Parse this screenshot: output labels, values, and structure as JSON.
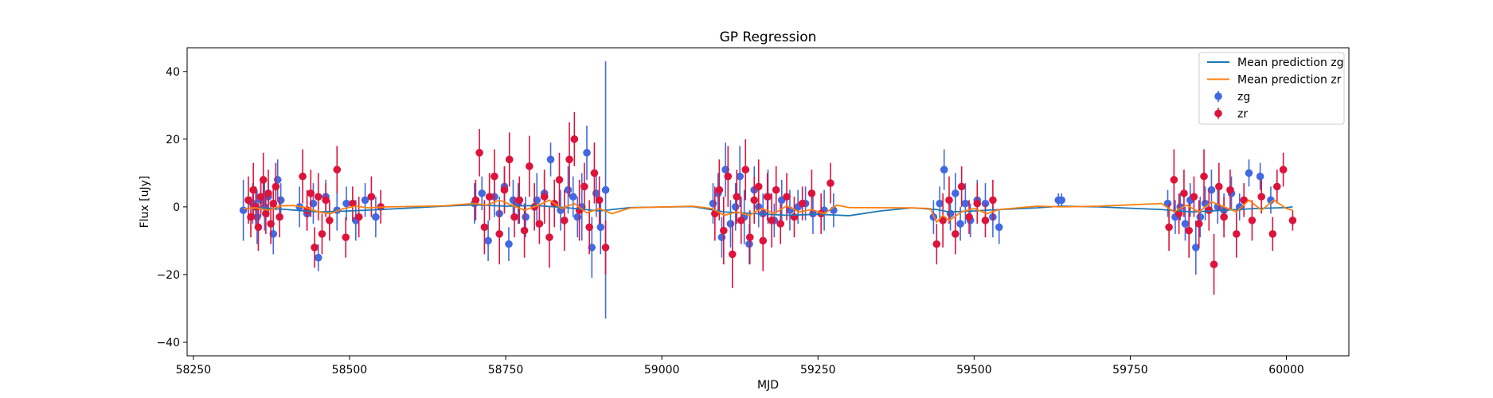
{
  "chart_data": {
    "type": "scatter",
    "title": "GP Regression",
    "xlabel": "MJD",
    "ylabel": "Flux [uJy]",
    "xlim": [
      58240,
      60100
    ],
    "ylim": [
      -44,
      47
    ],
    "xticks": [
      58250,
      58500,
      58750,
      59000,
      59250,
      59500,
      59750,
      60000
    ],
    "yticks": [
      -40,
      -20,
      0,
      20,
      40
    ],
    "grid": false,
    "legend": {
      "position": "top-right",
      "entries": [
        "Mean prediction zg",
        "Mean prediction zr",
        "zg",
        "zr"
      ]
    },
    "colors": {
      "zg_points": "#4169e1",
      "zr_points": "#dc143c",
      "zg_line": "#1f77b4",
      "zr_line": "#ff7f0e"
    },
    "lines": [
      {
        "name": "Mean prediction zg",
        "x": [
          58330,
          58360,
          58400,
          58450,
          58500,
          58550,
          58650,
          58700,
          58750,
          58800,
          58850,
          58900,
          58920,
          58950,
          59050,
          59100,
          59150,
          59200,
          59250,
          59300,
          59350,
          59400,
          59440,
          59460,
          59500,
          59540,
          59600,
          59640,
          59700,
          59800,
          59850,
          59900,
          59950,
          60000,
          60010
        ],
        "y": [
          -0.5,
          -0.3,
          -0.8,
          -1.5,
          -1.2,
          -0.8,
          0.2,
          0.6,
          0.2,
          0.4,
          -0.3,
          -1.2,
          -0.8,
          -0.2,
          0.1,
          -1.5,
          -2,
          -2.5,
          -2.2,
          -2.6,
          -1.2,
          -0.3,
          -0.8,
          -1.5,
          -1.2,
          -0.8,
          -0.3,
          0.2,
          0,
          -0.8,
          -1.5,
          -1,
          -0.5,
          -0.2,
          0
        ]
      },
      {
        "name": "Mean prediction zr",
        "x": [
          58330,
          58350,
          58370,
          58390,
          58410,
          58430,
          58450,
          58470,
          58490,
          58510,
          58530,
          58560,
          58650,
          58700,
          58720,
          58740,
          58760,
          58780,
          58800,
          58820,
          58840,
          58860,
          58880,
          58900,
          58920,
          58950,
          59050,
          59080,
          59100,
          59120,
          59140,
          59160,
          59180,
          59200,
          59220,
          59240,
          59260,
          59280,
          59300,
          59400,
          59430,
          59440,
          59450,
          59460,
          59480,
          59500,
          59520,
          59540,
          59600,
          59640,
          59700,
          59800,
          59820,
          59840,
          59860,
          59880,
          59900,
          59920,
          59940,
          59960,
          59980,
          60000,
          60010
        ],
        "y": [
          -0.5,
          -0.3,
          -1,
          0.3,
          0.4,
          -0.2,
          -1.5,
          -2,
          -0.5,
          0.2,
          -0.3,
          0,
          0.3,
          1,
          0.5,
          2,
          0.5,
          -1,
          0.3,
          2,
          -0.5,
          1,
          -1.8,
          -0.5,
          -2,
          -0.3,
          0.2,
          -0.5,
          -2.5,
          -1.5,
          -2.5,
          -0.5,
          -2,
          0.3,
          -1.5,
          -0.8,
          -2,
          0.5,
          -0.2,
          -0.3,
          -0.5,
          -4.5,
          -2.5,
          -4,
          -1.5,
          -0.5,
          -2,
          -0.8,
          0.2,
          0,
          0.2,
          1,
          -1.5,
          0.5,
          -1.5,
          1.5,
          0,
          -1.5,
          2,
          -1,
          2,
          -0.5,
          -1
        ]
      }
    ],
    "series": [
      {
        "name": "zg",
        "x": [
          58330,
          58345,
          58352,
          58358,
          58364,
          58370,
          58378,
          58385,
          58390,
          58420,
          58432,
          58442,
          58450,
          58462,
          58480,
          58495,
          58510,
          58525,
          58542,
          58700,
          58712,
          58722,
          58732,
          58740,
          58748,
          58755,
          58762,
          58770,
          58782,
          58800,
          58812,
          58822,
          58838,
          58850,
          58858,
          58865,
          58872,
          58880,
          58888,
          58895,
          58902,
          58910,
          59082,
          59090,
          59096,
          59102,
          59110,
          59118,
          59125,
          59132,
          59140,
          59148,
          59155,
          59162,
          59170,
          59180,
          59192,
          59205,
          59218,
          59230,
          59242,
          59260,
          59275,
          59435,
          59445,
          59452,
          59462,
          59470,
          59478,
          59486,
          59494,
          59505,
          59518,
          59530,
          59540,
          59635,
          59640,
          59810,
          59822,
          59830,
          59838,
          59846,
          59855,
          59862,
          59870,
          59880,
          59890,
          59900,
          59912,
          59925,
          59940,
          59958,
          59975
        ],
        "y": [
          -1,
          1,
          -3,
          2,
          0,
          3,
          -8,
          8,
          2,
          0,
          -2,
          1,
          -15,
          3,
          -1,
          1,
          -4,
          2,
          -3,
          1,
          4,
          -10,
          3,
          -2,
          6,
          -11,
          2,
          1,
          -3,
          2,
          4,
          14,
          -1,
          5,
          3,
          -3,
          0,
          16,
          -12,
          4,
          -6,
          5,
          1,
          4,
          -9,
          11,
          -5,
          0,
          9,
          -3,
          -11,
          5,
          0,
          -2,
          3,
          -4,
          2,
          -1,
          0,
          1,
          -2,
          -1,
          -1,
          -3,
          1,
          11,
          -2,
          4,
          -5,
          1,
          -4,
          2,
          1,
          -3,
          -6,
          2,
          2,
          1,
          -3,
          0,
          -5,
          2,
          -12,
          -3,
          1,
          5,
          0,
          -1,
          4,
          0,
          10,
          9,
          2
        ],
        "yerr": [
          9,
          6,
          8,
          5,
          7,
          5,
          6,
          6,
          5,
          6,
          5,
          6,
          4,
          5,
          6,
          5,
          6,
          5,
          6,
          6,
          5,
          6,
          6,
          5,
          6,
          5,
          6,
          6,
          6,
          8,
          6,
          5,
          6,
          7,
          6,
          6,
          10,
          8,
          9,
          7,
          8,
          38,
          6,
          6,
          6,
          8,
          7,
          7,
          9,
          8,
          6,
          7,
          6,
          6,
          8,
          5,
          6,
          6,
          5,
          5,
          6,
          6,
          5,
          5,
          5,
          6,
          5,
          6,
          5,
          6,
          5,
          6,
          6,
          6,
          5,
          2,
          2,
          4,
          5,
          4,
          5,
          5,
          8,
          6,
          5,
          6,
          5,
          5,
          5,
          4,
          4,
          4,
          4
        ]
      },
      {
        "name": "zr",
        "x": [
          58338,
          58342,
          58346,
          58350,
          58354,
          58358,
          58362,
          58366,
          58370,
          58374,
          58378,
          58382,
          58388,
          58425,
          58432,
          58438,
          58444,
          58450,
          58456,
          58462,
          58468,
          58480,
          58494,
          58505,
          58515,
          58535,
          58550,
          58702,
          58708,
          58716,
          58724,
          58732,
          58740,
          58748,
          58756,
          58764,
          58772,
          58780,
          58788,
          58796,
          58804,
          58812,
          58820,
          58828,
          58836,
          58844,
          58852,
          58860,
          58868,
          58876,
          58884,
          58892,
          58900,
          58910,
          59085,
          59092,
          59099,
          59106,
          59113,
          59120,
          59127,
          59134,
          59141,
          59148,
          59155,
          59162,
          59169,
          59176,
          59183,
          59190,
          59200,
          59212,
          59225,
          59240,
          59255,
          59270,
          59440,
          59450,
          59460,
          59470,
          59480,
          59492,
          59505,
          59518,
          59530,
          59812,
          59820,
          59828,
          59836,
          59844,
          59852,
          59860,
          59868,
          59876,
          59884,
          59892,
          59900,
          59910,
          59920,
          59932,
          59945,
          59960,
          59978,
          59985,
          59995,
          60010
        ],
        "y": [
          2,
          -3,
          5,
          0,
          -6,
          3,
          8,
          -2,
          4,
          -5,
          1,
          6,
          -3,
          9,
          -1,
          4,
          -12,
          3,
          -8,
          2,
          -4,
          11,
          -9,
          1,
          -3,
          3,
          0,
          2,
          16,
          -6,
          3,
          9,
          -8,
          5,
          14,
          -3,
          2,
          -7,
          12,
          0,
          -5,
          3,
          -9,
          1,
          8,
          -4,
          14,
          20,
          -1,
          6,
          -6,
          10,
          2,
          -12,
          -2,
          5,
          -7,
          9,
          -14,
          3,
          -4,
          11,
          -9,
          2,
          6,
          -10,
          3,
          -4,
          5,
          -5,
          3,
          -3,
          1,
          4,
          -2,
          7,
          -11,
          -4,
          2,
          -8,
          6,
          -3,
          1,
          -4,
          2,
          -6,
          8,
          -2,
          4,
          -7,
          3,
          -5,
          9,
          -1,
          -17,
          6,
          -3,
          5,
          -8,
          2,
          -4,
          3,
          -8,
          6,
          11,
          -4
        ],
        "yerr": [
          7,
          6,
          8,
          6,
          7,
          5,
          8,
          6,
          7,
          6,
          5,
          7,
          6,
          8,
          6,
          7,
          6,
          7,
          6,
          5,
          6,
          7,
          6,
          5,
          6,
          6,
          5,
          6,
          7,
          8,
          7,
          8,
          9,
          7,
          8,
          6,
          7,
          8,
          9,
          7,
          6,
          8,
          9,
          7,
          8,
          9,
          11,
          8,
          9,
          7,
          8,
          9,
          7,
          8,
          8,
          9,
          10,
          9,
          10,
          8,
          7,
          9,
          8,
          7,
          8,
          9,
          7,
          8,
          7,
          6,
          7,
          6,
          5,
          7,
          6,
          6,
          6,
          8,
          7,
          6,
          6,
          5,
          6,
          5,
          6,
          7,
          9,
          6,
          7,
          8,
          6,
          7,
          8,
          6,
          9,
          7,
          6,
          6,
          7,
          5,
          6,
          5,
          5,
          5,
          5,
          3
        ]
      }
    ]
  }
}
